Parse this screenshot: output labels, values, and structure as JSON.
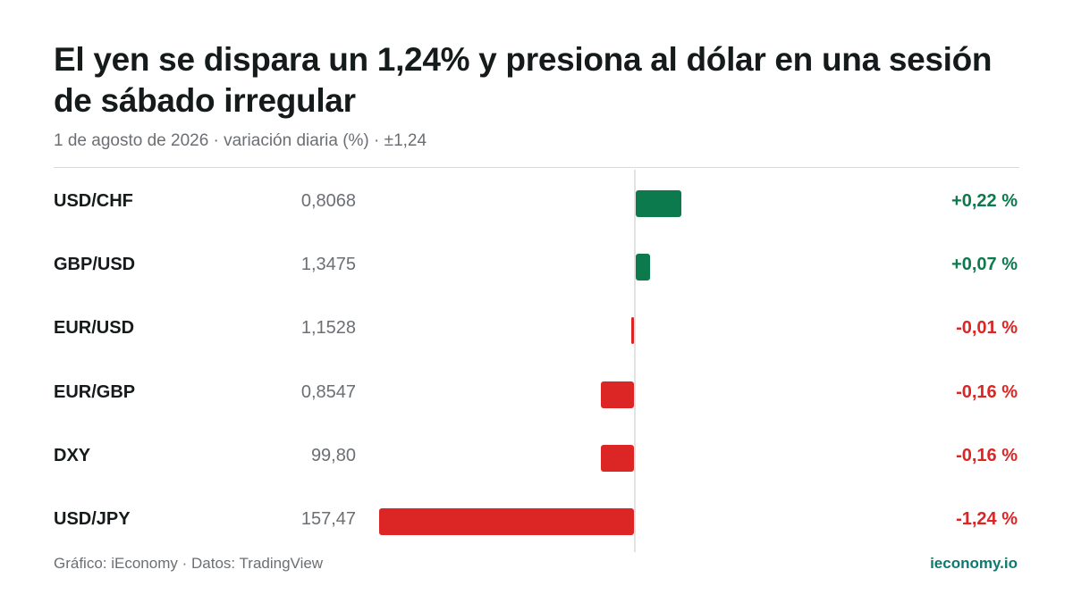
{
  "title": "El yen se dispara un 1,24% y presiona al dólar en una sesión de sábado irregular",
  "subtitle": "1 de agosto de 2026 · variación diaria (%) · ±1,24",
  "footer": {
    "source": "Gráfico: iEconomy · Datos: TradingView",
    "brand": "ieconomy.io"
  },
  "colors": {
    "positive": "#0d7a4e",
    "negative": "#dc2626",
    "brand": "#0d7a70"
  },
  "chart_data": {
    "type": "bar",
    "orientation": "horizontal",
    "scale_max_abs": 1.24,
    "rows": [
      {
        "pair": "USD/CHF",
        "price": "0,8068",
        "change": 0.22,
        "change_label": "+0,22 %"
      },
      {
        "pair": "GBP/USD",
        "price": "1,3475",
        "change": 0.07,
        "change_label": "+0,07 %"
      },
      {
        "pair": "EUR/USD",
        "price": "1,1528",
        "change": -0.01,
        "change_label": "-0,01 %"
      },
      {
        "pair": "EUR/GBP",
        "price": "0,8547",
        "change": -0.16,
        "change_label": "-0,16 %"
      },
      {
        "pair": "DXY",
        "price": "99,80",
        "change": -0.16,
        "change_label": "-0,16 %"
      },
      {
        "pair": "USD/JPY",
        "price": "157,47",
        "change": -1.24,
        "change_label": "-1,24 %"
      }
    ]
  }
}
